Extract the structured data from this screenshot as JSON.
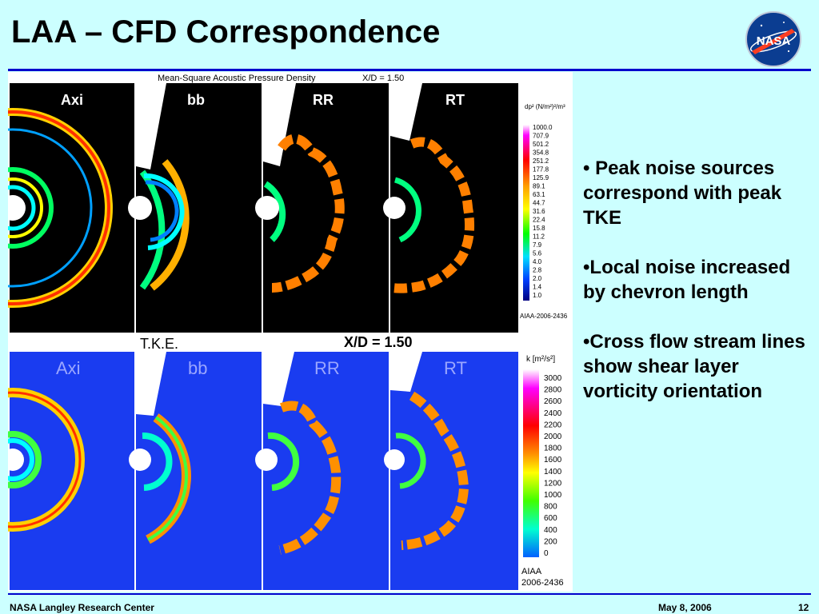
{
  "slide": {
    "title": "LAA – CFD Correspondence",
    "logo_text": "NASA",
    "bullets": [
      "• Peak noise sources correspond with peak TKE",
      "•Local noise increased by chevron length",
      "•Cross flow stream lines show shear layer vorticity orientation"
    ]
  },
  "figure": {
    "top_title": "Mean-Square Acoustic Pressure Density",
    "top_xd": "X/D = 1.50",
    "top_panel_labels": [
      "Axi",
      "bb",
      "RR",
      "RT"
    ],
    "top_legend_title": "dp² (N/m²)²/m³",
    "top_legend_values": [
      "1000.0",
      "707.9",
      "501.2",
      "354.8",
      "251.2",
      "177.8",
      "125.9",
      "89.1",
      "63.1",
      "44.7",
      "31.6",
      "22.4",
      "15.8",
      "11.2",
      "7.9",
      "5.6",
      "4.0",
      "2.8",
      "2.0",
      "1.4",
      "1.0"
    ],
    "top_credit": "AIAA-2006-2436",
    "bottom_title": "T.K.E.",
    "bottom_xd": "X/D = 1.50",
    "bottom_panel_labels": [
      "Axi",
      "bb",
      "RR",
      "RT"
    ],
    "bottom_legend_title": "k [m²/s²]",
    "bottom_legend_values": [
      "3000",
      "2800",
      "2600",
      "2400",
      "2200",
      "2000",
      "1800",
      "1600",
      "1400",
      "1200",
      "1000",
      "800",
      "600",
      "400",
      "200",
      "0"
    ],
    "bottom_credit_1": "AIAA",
    "bottom_credit_2": "2006-2436"
  },
  "footer": {
    "org": "NASA Langley Research Center",
    "date": "May 8, 2006",
    "page": "12"
  },
  "colors": {
    "background": "#ccffff",
    "rule": "#0000cc",
    "acoustic_bg": "#000000",
    "tke_bg": "#1a3cf0"
  }
}
